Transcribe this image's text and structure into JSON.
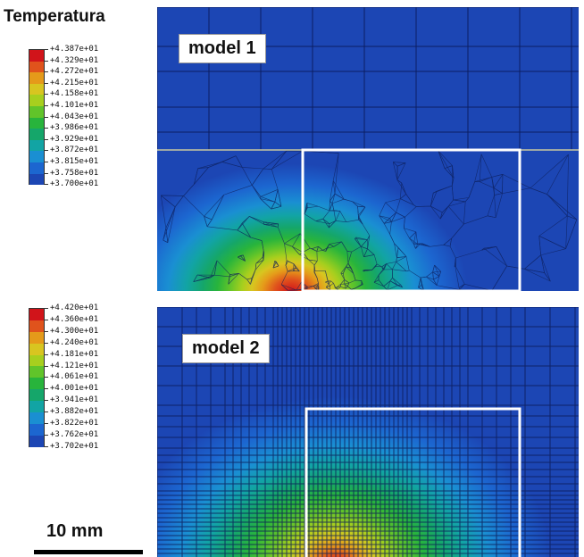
{
  "title": "Temperatura",
  "legend1": {
    "labels": [
      "+4.387e+01",
      "+4.329e+01",
      "+4.272e+01",
      "+4.215e+01",
      "+4.158e+01",
      "+4.101e+01",
      "+4.043e+01",
      "+3.986e+01",
      "+3.929e+01",
      "+3.872e+01",
      "+3.815e+01",
      "+3.758e+01",
      "+3.700e+01"
    ]
  },
  "legend2": {
    "labels": [
      "+4.420e+01",
      "+4.360e+01",
      "+4.300e+01",
      "+4.240e+01",
      "+4.181e+01",
      "+4.121e+01",
      "+4.061e+01",
      "+4.001e+01",
      "+3.941e+01",
      "+3.882e+01",
      "+3.822e+01",
      "+3.762e+01",
      "+3.702e+01"
    ]
  },
  "colors": [
    "#d1141a",
    "#e0531c",
    "#e59a1a",
    "#d8c520",
    "#a7cf1e",
    "#61c42a",
    "#28b43c",
    "#15a66a",
    "#12a4a4",
    "#1a8fd2",
    "#1c66d0",
    "#1c46b4",
    "#1a32a0"
  ],
  "panel1": {
    "label": "model 1"
  },
  "panel2": {
    "label": "model 2"
  },
  "scale": {
    "label": "10 mm"
  }
}
